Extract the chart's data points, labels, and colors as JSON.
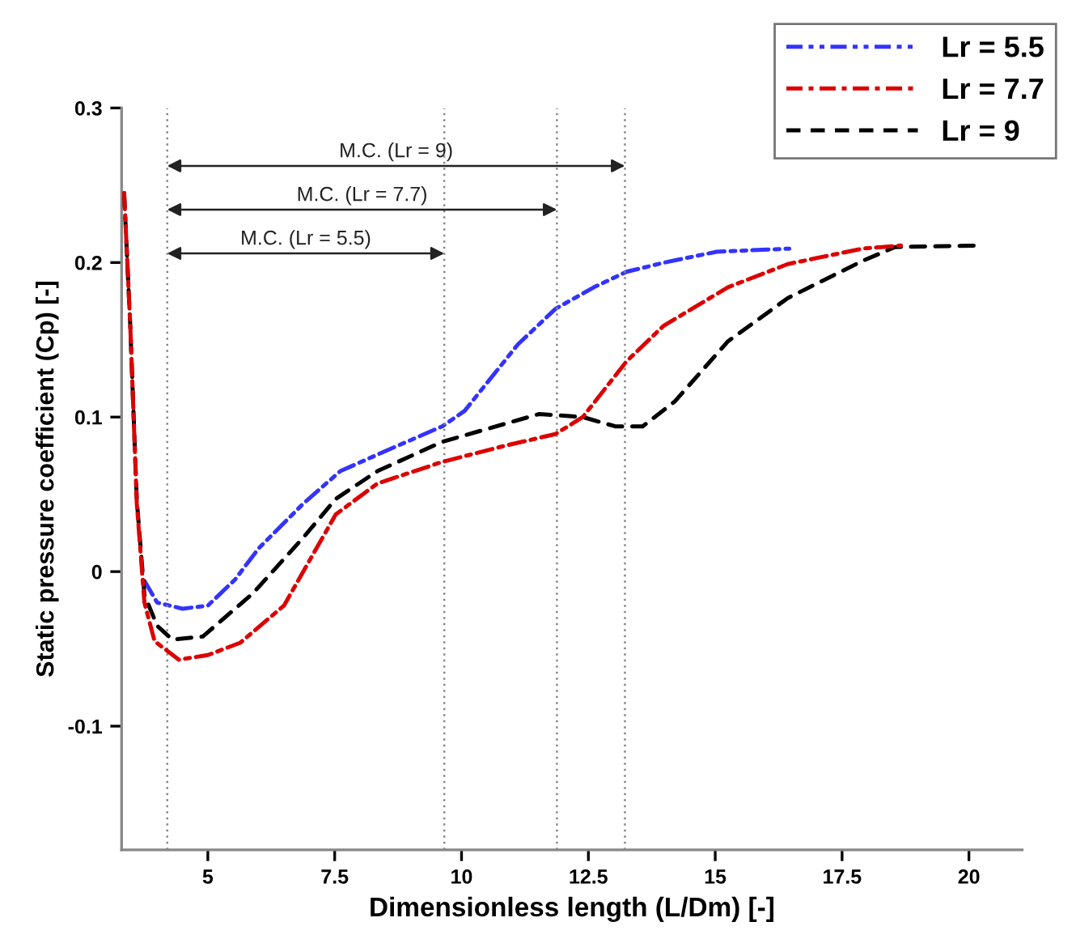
{
  "chart_data": {
    "type": "line",
    "xlabel": "Dimensionless length (L/Dm) [-]",
    "ylabel": "Static pressure coefficient (Cp) [-]",
    "xlim": [
      3.3,
      21.05
    ],
    "ylim": [
      -0.18,
      0.3
    ],
    "xticks": [
      5,
      7.5,
      10,
      12.5,
      15,
      17.5,
      20
    ],
    "yticks": [
      {
        "value": -0.1,
        "label": "-0.1"
      },
      0,
      0.1,
      0.2,
      0.3
    ],
    "grid": false,
    "legend": "top right",
    "marker": "none",
    "series": [
      {
        "name": "Lr = 5.5",
        "color": "#3333ff",
        "line_style": "dashdotdot",
        "x": [
          3.75,
          4.0,
          4.5,
          5.0,
          5.54,
          6.0,
          6.88,
          7.61,
          8.5,
          9.62,
          10.06,
          11.11,
          11.85,
          12.61,
          13.25,
          14.0,
          15.03,
          16.46
        ],
        "values": [
          -0.006,
          -0.02,
          -0.024,
          -0.022,
          -0.005,
          0.015,
          0.044,
          0.065,
          0.078,
          0.094,
          0.104,
          0.147,
          0.17,
          0.184,
          0.194,
          0.2,
          0.207,
          0.209
        ]
      },
      {
        "name": "Lr = 7.7",
        "color": "#dd0000",
        "line_style": "dashdot",
        "x": [
          3.35,
          3.47,
          3.6,
          3.75,
          3.95,
          4.43,
          5.0,
          5.64,
          6.5,
          7.52,
          8.34,
          9.62,
          10.8,
          11.85,
          12.39,
          13.25,
          13.98,
          15.25,
          16.43,
          17.9,
          18.66
        ],
        "values": [
          0.245,
          0.16,
          0.044,
          -0.02,
          -0.045,
          -0.057,
          -0.054,
          -0.046,
          -0.022,
          0.037,
          0.057,
          0.071,
          0.081,
          0.089,
          0.1,
          0.136,
          0.159,
          0.184,
          0.199,
          0.209,
          0.211
        ]
      },
      {
        "name": "Lr = 9",
        "color": "#000000",
        "line_style": "dashed",
        "x": [
          3.35,
          3.47,
          3.6,
          3.75,
          4.0,
          4.3,
          4.9,
          5.89,
          6.88,
          7.52,
          8.34,
          9.62,
          11.53,
          12.39,
          13.03,
          13.57,
          14.2,
          15.25,
          16.43,
          17.9,
          18.54,
          20.25
        ],
        "values": [
          0.245,
          0.16,
          0.046,
          -0.015,
          -0.035,
          -0.044,
          -0.042,
          -0.014,
          0.022,
          0.047,
          0.065,
          0.084,
          0.102,
          0.1,
          0.094,
          0.094,
          0.11,
          0.149,
          0.177,
          0.201,
          0.21,
          0.211
        ]
      }
    ],
    "ref_lines": [
      {
        "axis": "x",
        "value": 4.2,
        "color": "#888888",
        "line_style": "dotted"
      },
      {
        "axis": "x",
        "value": 9.66,
        "color": "#888888",
        "line_style": "dotted"
      },
      {
        "axis": "x",
        "value": 11.88,
        "color": "#888888",
        "line_style": "dotted"
      },
      {
        "axis": "x",
        "value": 13.22,
        "color": "#888888",
        "line_style": "dotted"
      }
    ],
    "annotations": [
      "M.C. (Lr = 5.5)",
      "M.C. (Lr = 7.7)",
      "M.C. (Lr = 9)"
    ]
  }
}
